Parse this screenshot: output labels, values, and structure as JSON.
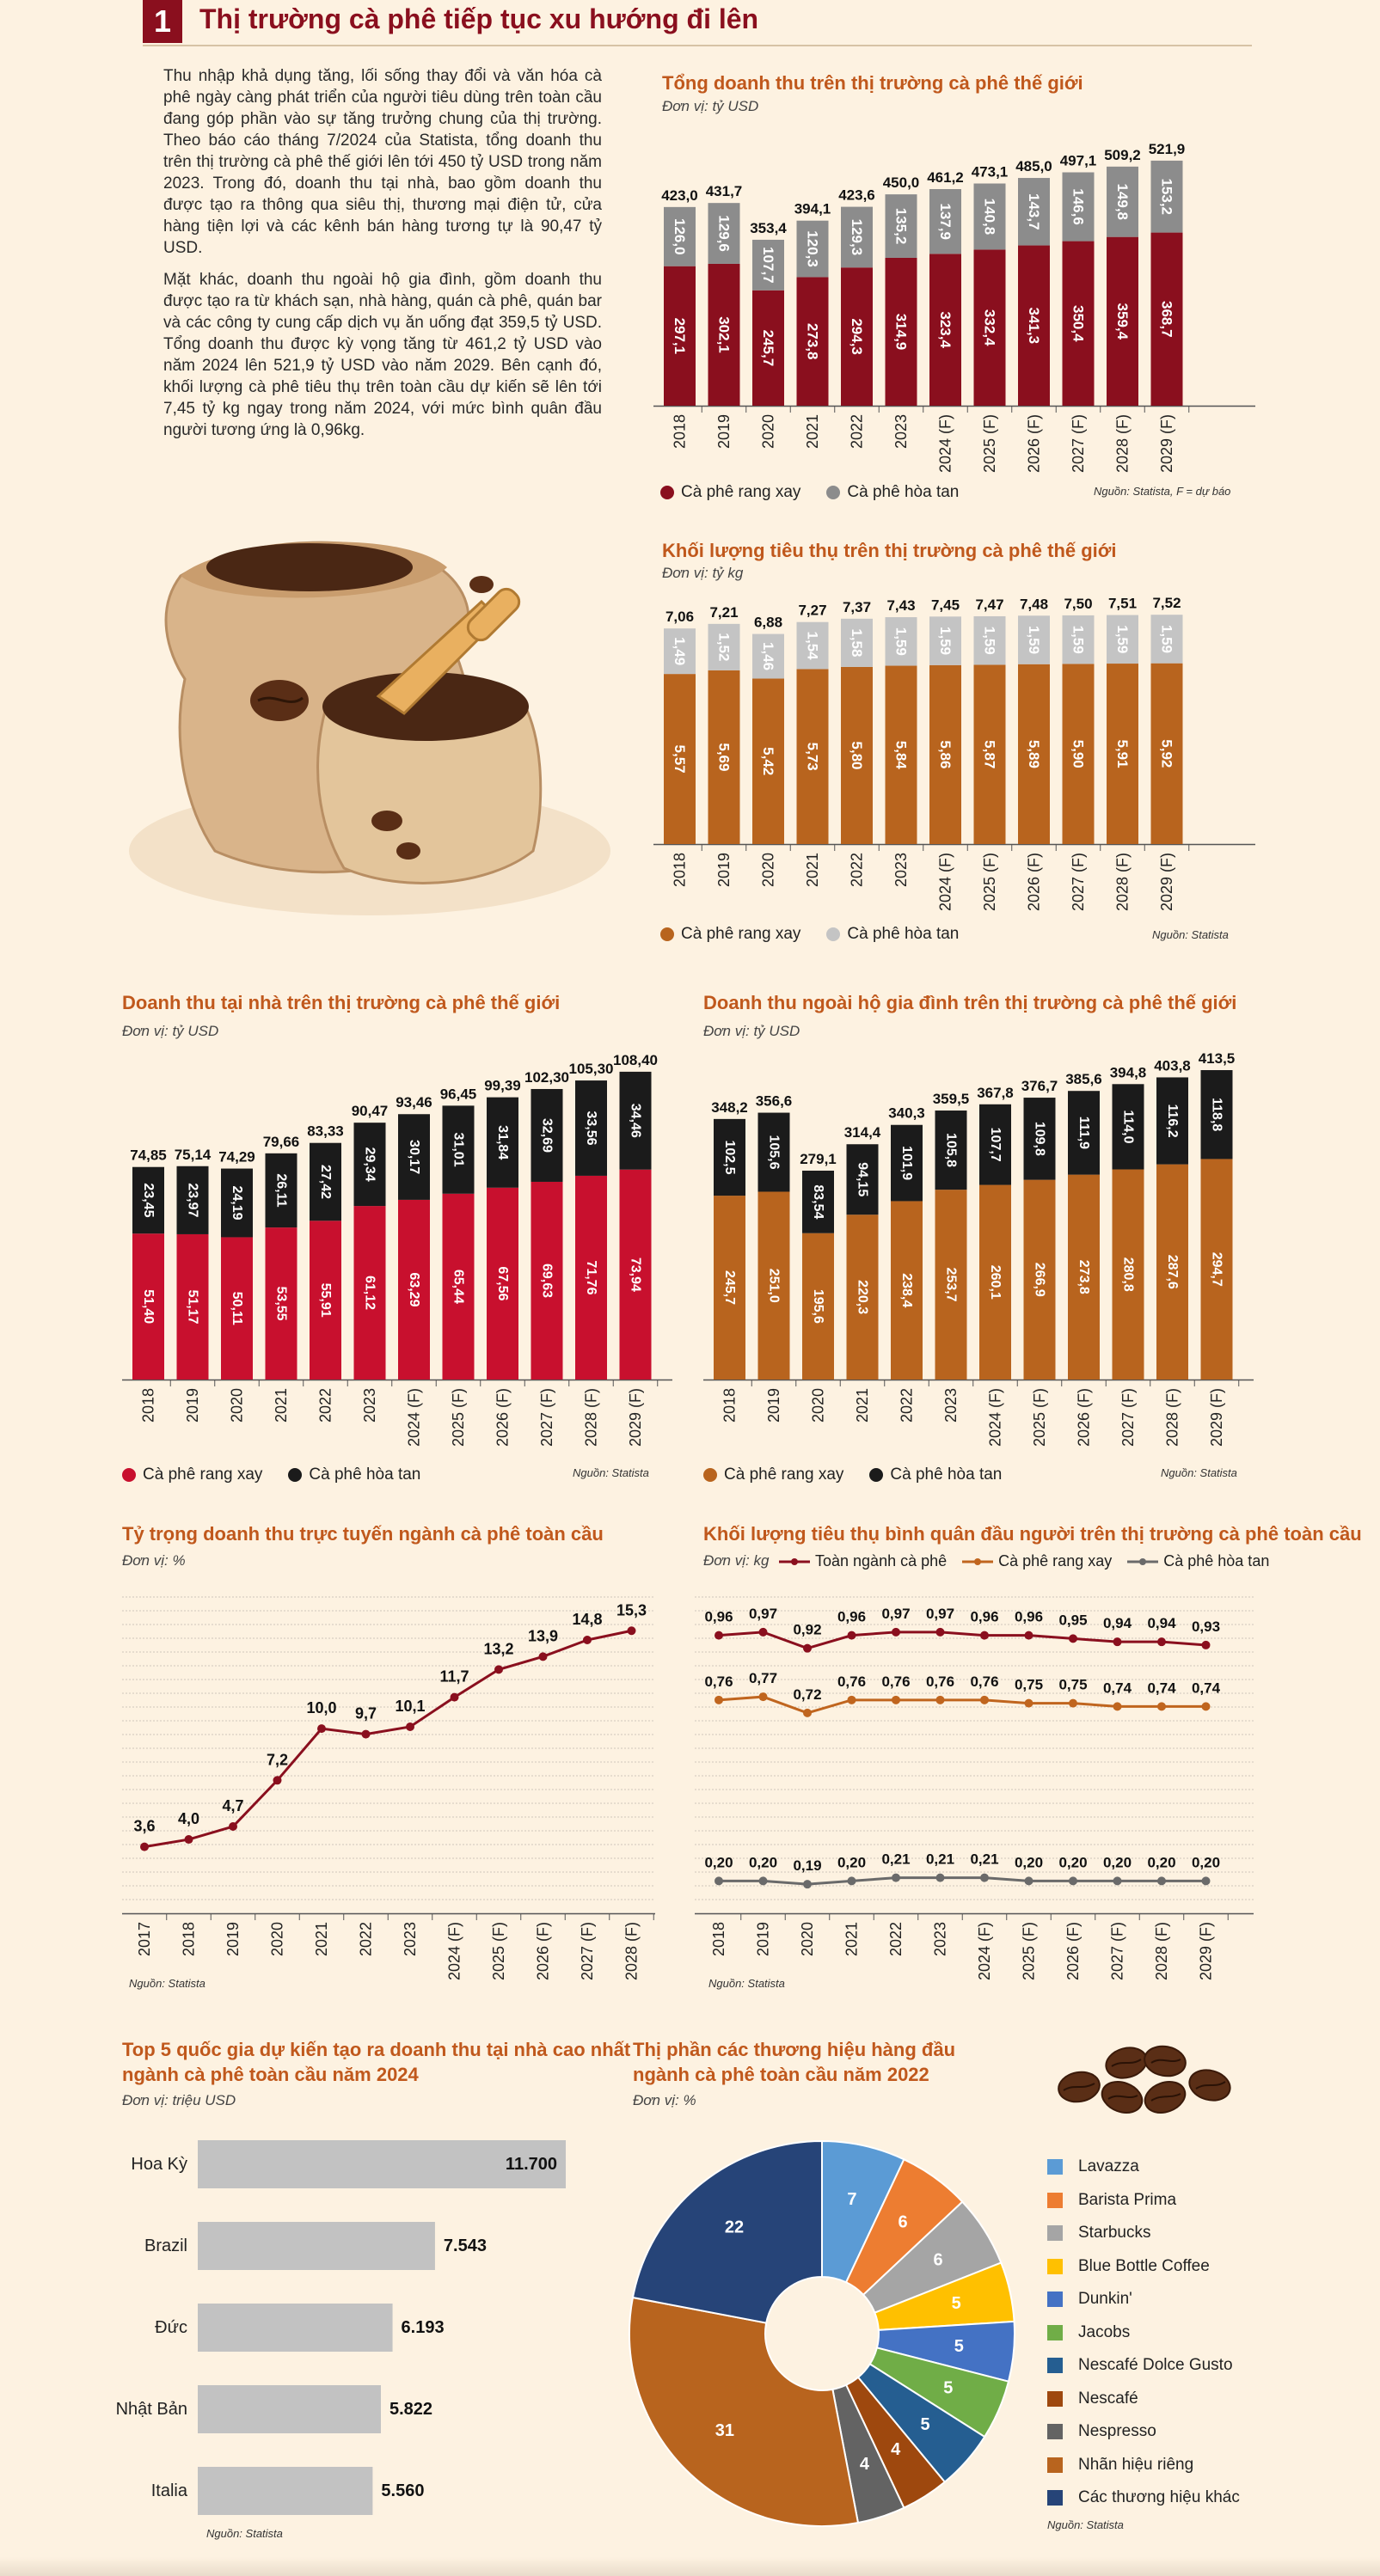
{
  "header": {
    "number": "1",
    "title": "Thị trường cà phê tiếp tục xu hướng đi lên"
  },
  "intro": {
    "p1": "Thu nhập khả dụng tăng, lối sống thay đổi và văn hóa cà phê ngày càng phát triển của người tiêu dùng trên toàn cầu đang góp phần vào sự tăng trưởng chung của thị trường. Theo báo cáo tháng 7/2024 của Statista, tổng doanh thu trên thị trường cà phê thế giới lên tới 450 tỷ USD trong năm 2023. Trong đó, doanh thu tại nhà, bao gồm doanh thu được tạo ra thông qua siêu thị, thương mại điện tử, cửa hàng tiện lợi và các kênh bán hàng tương tự là 90,47 tỷ USD.",
    "p2": "Mặt khác, doanh thu ngoài hộ gia đình, gồm doanh thu được tạo ra từ khách sạn, nhà hàng, quán cà phê, quán bar và các công ty cung cấp dịch vụ ăn uống đạt 359,5 tỷ USD. Tổng doanh thu được kỳ vọng tăng từ 461,2 tỷ USD vào năm 2024 lên 521,9 tỷ USD vào năm 2029. Bên cạnh đó, khối lượng cà phê tiêu thụ trên toàn cầu dự kiến sẽ lên tới 7,45 tỷ kg ngay trong năm 2024, với mức bình quân đầu người tương ứng là 0,96kg."
  },
  "chart_data": [
    {
      "id": "total-revenue",
      "type": "bar",
      "stacked": true,
      "title": "Tổng doanh thu trên thị trường cà phê thế giới",
      "subtitle": "Đơn vị: tỷ USD",
      "source": "Nguồn: Statista, F = dự báo",
      "categories": [
        "2018",
        "2019",
        "2020",
        "2021",
        "2022",
        "2023",
        "2024 (F)",
        "2025 (F)",
        "2026 (F)",
        "2027 (F)",
        "2028 (F)",
        "2029 (F)"
      ],
      "series": [
        {
          "name": "Cà phê rang xay",
          "color": "#8a0f1e",
          "values": [
            297.1,
            302.1,
            245.7,
            273.8,
            294.3,
            314.9,
            323.4,
            332.4,
            341.3,
            350.4,
            359.4,
            368.7
          ],
          "labels": [
            "297,1",
            "302,1",
            "245,7",
            "273,8",
            "294,3",
            "314,9",
            "323,4",
            "332,4",
            "341,3",
            "350,4",
            "359,4",
            "368,7"
          ]
        },
        {
          "name": "Cà phê hòa tan",
          "color": "#8c8c8c",
          "values": [
            126.0,
            129.6,
            107.7,
            120.3,
            129.3,
            135.2,
            137.9,
            140.8,
            143.7,
            146.6,
            149.8,
            153.2
          ],
          "labels": [
            "126,0",
            "129,6",
            "107,7",
            "120,3",
            "129,3",
            "135,2",
            "137,9",
            "140,8",
            "143,7",
            "146,6",
            "149,8",
            "153,2"
          ]
        }
      ],
      "totals": [
        "423,0",
        "431,7",
        "353,4",
        "394,1",
        "423,6",
        "450,0",
        "461,2",
        "473,1",
        "485,0",
        "497,1",
        "509,2",
        "521,9"
      ],
      "ylim": [
        0,
        540
      ]
    },
    {
      "id": "volume",
      "type": "bar",
      "stacked": true,
      "title": "Khối lượng tiêu thụ trên thị trường cà phê thế giới",
      "subtitle": "Đơn vị: tỷ kg",
      "source": "Nguồn: Statista",
      "categories": [
        "2018",
        "2019",
        "2020",
        "2021",
        "2022",
        "2023",
        "2024 (F)",
        "2025 (F)",
        "2026 (F)",
        "2027 (F)",
        "2028 (F)",
        "2029 (F)"
      ],
      "series": [
        {
          "name": "Cà phê rang xay",
          "color": "#b8641e",
          "values": [
            5.57,
            5.69,
            5.42,
            5.73,
            5.8,
            5.84,
            5.86,
            5.87,
            5.89,
            5.9,
            5.91,
            5.92
          ],
          "labels": [
            "5,57",
            "5,69",
            "5,42",
            "5,73",
            "5,80",
            "5,84",
            "5,86",
            "5,87",
            "5,89",
            "5,90",
            "5,91",
            "5,92"
          ]
        },
        {
          "name": "Cà phê hòa tan",
          "color": "#c4c4c4",
          "values": [
            1.49,
            1.52,
            1.46,
            1.54,
            1.58,
            1.59,
            1.59,
            1.59,
            1.59,
            1.59,
            1.59,
            1.59
          ],
          "labels": [
            "1,49",
            "1,52",
            "1,46",
            "1,54",
            "1,58",
            "1,59",
            "1,59",
            "1,59",
            "1,59",
            "1,59",
            "1,59",
            "1,59"
          ]
        }
      ],
      "totals": [
        "7,06",
        "7,21",
        "6,88",
        "7,27",
        "7,37",
        "7,43",
        "7,45",
        "7,47",
        "7,48",
        "7,50",
        "7,51",
        "7,52"
      ],
      "ylim": [
        0,
        7.6
      ]
    },
    {
      "id": "at-home",
      "type": "bar",
      "stacked": true,
      "title": "Doanh thu tại nhà trên thị trường cà phê thế giới",
      "subtitle": "Đơn vị: tỷ USD",
      "source": "Nguồn: Statista",
      "categories": [
        "2018",
        "2019",
        "2020",
        "2021",
        "2022",
        "2023",
        "2024 (F)",
        "2025 (F)",
        "2026 (F)",
        "2027 (F)",
        "2028 (F)",
        "2029 (F)"
      ],
      "series": [
        {
          "name": "Cà phê rang xay",
          "color": "#c8102e",
          "values": [
            51.4,
            51.17,
            50.11,
            53.55,
            55.91,
            61.12,
            63.29,
            65.44,
            67.56,
            69.63,
            71.76,
            73.94
          ],
          "labels": [
            "51,40",
            "51,17",
            "50,11",
            "53,55",
            "55,91",
            "61,12",
            "63,29",
            "65,44",
            "67,56",
            "69,63",
            "71,76",
            "73,94"
          ]
        },
        {
          "name": "Cà phê hòa tan",
          "color": "#1b1b1b",
          "values": [
            23.45,
            23.97,
            24.19,
            26.11,
            27.42,
            29.34,
            30.17,
            31.01,
            31.84,
            32.69,
            33.56,
            34.46
          ],
          "labels": [
            "23,45",
            "23,97",
            "24,19",
            "26,11",
            "27,42",
            "29,34",
            "30,17",
            "31,01",
            "31,84",
            "32,69",
            "33,56",
            "34,46"
          ]
        }
      ],
      "totals": [
        "74,85",
        "75,14",
        "74,29",
        "79,66",
        "83,33",
        "90,47",
        "93,46",
        "96,45",
        "99,39",
        "102,30",
        "105,30",
        "108,40"
      ],
      "ylim": [
        0,
        112
      ]
    },
    {
      "id": "out-of-home",
      "type": "bar",
      "stacked": true,
      "title": "Doanh thu ngoài hộ gia đình trên thị trường cà phê thế giới",
      "subtitle": "Đơn vị: tỷ USD",
      "source": "Nguồn: Statista",
      "categories": [
        "2018",
        "2019",
        "2020",
        "2021",
        "2022",
        "2023",
        "2024 (F)",
        "2025 (F)",
        "2026 (F)",
        "2027 (F)",
        "2028 (F)",
        "2029 (F)"
      ],
      "series": [
        {
          "name": "Cà phê rang xay",
          "color": "#b8641e",
          "values": [
            245.7,
            251.0,
            195.6,
            220.3,
            238.4,
            253.7,
            260.1,
            266.9,
            273.8,
            280.8,
            287.6,
            294.7
          ],
          "labels": [
            "245,7",
            "251,0",
            "195,6",
            "220,3",
            "238,4",
            "253,7",
            "260,1",
            "266,9",
            "273,8",
            "280,8",
            "287,6",
            "294,7"
          ]
        },
        {
          "name": "Cà phê hòa tan",
          "color": "#1b1b1b",
          "values": [
            102.5,
            105.6,
            83.54,
            94.15,
            101.9,
            105.8,
            107.7,
            109.8,
            111.9,
            114.0,
            116.2,
            118.8
          ],
          "labels": [
            "102,5",
            "105,6",
            "83,54",
            "94,15",
            "101,9",
            "105,8",
            "107,7",
            "109,8",
            "111,9",
            "114,0",
            "116,2",
            "118,8"
          ]
        }
      ],
      "totals": [
        "348,2",
        "356,6",
        "279,1",
        "314,4",
        "340,3",
        "359,5",
        "367,8",
        "376,7",
        "385,6",
        "394,8",
        "403,8",
        "413,5"
      ],
      "ylim": [
        0,
        425
      ]
    },
    {
      "id": "online-share",
      "type": "line",
      "title": "Tỷ trọng doanh thu trực tuyến ngành cà phê toàn cầu",
      "subtitle": "Đơn vị: %",
      "source": "Nguồn: Statista",
      "categories": [
        "2017",
        "2018",
        "2019",
        "2020",
        "2021",
        "2022",
        "2023",
        "2024 (F)",
        "2025 (F)",
        "2026 (F)",
        "2027 (F)",
        "2028 (F)"
      ],
      "series": [
        {
          "name": "",
          "color": "#8a0f1e",
          "values": [
            3.6,
            4.0,
            4.7,
            7.2,
            10.0,
            9.7,
            10.1,
            11.7,
            13.2,
            13.9,
            14.8,
            15.3
          ],
          "labels": [
            "3,6",
            "4,0",
            "4,7",
            "7,2",
            "10,0",
            "9,7",
            "10,1",
            "11,7",
            "13,2",
            "13,9",
            "14,8",
            "15,3"
          ]
        }
      ],
      "ylim": [
        0,
        17.5
      ],
      "grid": true
    },
    {
      "id": "per-capita",
      "type": "line",
      "title": "Khối lượng tiêu thụ bình quân đầu người trên thị trường cà phê toàn cầu",
      "subtitle": "Đơn vị: kg",
      "source": "Nguồn: Statista",
      "categories": [
        "2018",
        "2019",
        "2020",
        "2021",
        "2022",
        "2023",
        "2024 (F)",
        "2025 (F)",
        "2026 (F)",
        "2027 (F)",
        "2028 (F)",
        "2029 (F)"
      ],
      "series": [
        {
          "name": "Toàn ngành cà phê",
          "color": "#8a0f1e",
          "values": [
            0.96,
            0.97,
            0.92,
            0.96,
            0.97,
            0.97,
            0.96,
            0.96,
            0.95,
            0.94,
            0.94,
            0.93
          ],
          "labels": [
            "0,96",
            "0,97",
            "0,92",
            "0,96",
            "0,97",
            "0,97",
            "0,96",
            "0,96",
            "0,95",
            "0,94",
            "0,94",
            "0,93"
          ]
        },
        {
          "name": "Cà phê rang xay",
          "color": "#c0651e",
          "values": [
            0.76,
            0.77,
            0.72,
            0.76,
            0.76,
            0.76,
            0.76,
            0.75,
            0.75,
            0.74,
            0.74,
            0.74
          ],
          "labels": [
            "0,76",
            "0,77",
            "0,72",
            "0,76",
            "0,76",
            "0,76",
            "0,76",
            "0,75",
            "0,75",
            "0,74",
            "0,74",
            "0,74"
          ]
        },
        {
          "name": "Cà phê hòa tan",
          "color": "#6a6a6a",
          "values": [
            0.2,
            0.2,
            0.19,
            0.2,
            0.21,
            0.21,
            0.21,
            0.2,
            0.2,
            0.2,
            0.2,
            0.2
          ],
          "labels": [
            "0,20",
            "0,20",
            "0,19",
            "0,20",
            "0,21",
            "0,21",
            "0,21",
            "0,20",
            "0,20",
            "0,20",
            "0,20",
            "0,20"
          ]
        }
      ],
      "ylim": [
        0.1,
        1.1
      ],
      "grid": true
    },
    {
      "id": "top5",
      "type": "bar",
      "orientation": "horizontal",
      "title": "Top 5 quốc gia dự kiến tạo ra doanh thu tại nhà cao nhất ngành cà phê toàn cầu năm 2024",
      "title_line1": "Top 5 quốc gia dự kiến tạo ra doanh thu tại nhà cao nhất",
      "title_line2": "ngành cà phê toàn cầu năm 2024",
      "subtitle": "Đơn vị: triệu USD",
      "source": "Nguồn: Statista",
      "categories": [
        "Hoa Kỳ",
        "Brazil",
        "Đức",
        "Nhật Bản",
        "Italia"
      ],
      "values": [
        11700,
        7543,
        6193,
        5822,
        5560
      ],
      "labels": [
        "11.700",
        "7.543",
        "6.193",
        "5.822",
        "5.560"
      ],
      "color": "#c2c2c2",
      "xlim": [
        0,
        12000
      ]
    },
    {
      "id": "brand-share",
      "type": "pie",
      "title": "Thị phần các thương hiệu hàng đầu ngành cà phê toàn cầu năm 2022",
      "title_line1": "Thị phần các thương hiệu hàng đầu",
      "title_line2": "ngành cà phê toàn cầu năm 2022",
      "subtitle": "Đơn vị: %",
      "source": "Nguồn: Statista",
      "slices": [
        {
          "name": "Lavazza",
          "value": 7,
          "color": "#5b9bd5"
        },
        {
          "name": "Barista Prima",
          "value": 6,
          "color": "#ed7d31"
        },
        {
          "name": "Starbucks",
          "value": 6,
          "color": "#a5a5a5"
        },
        {
          "name": "Blue Bottle Coffee",
          "value": 5,
          "color": "#ffc000"
        },
        {
          "name": "Dunkin'",
          "value": 5,
          "color": "#4472c4"
        },
        {
          "name": "Jacobs",
          "value": 5,
          "color": "#70ad47"
        },
        {
          "name": "Nescafé Dolce Gusto",
          "value": 5,
          "color": "#255e91"
        },
        {
          "name": "Nescafé",
          "value": 4,
          "color": "#9e480e"
        },
        {
          "name": "Nespresso",
          "value": 4,
          "color": "#636363"
        },
        {
          "name": "Nhãn hiệu riêng",
          "value": 31,
          "color": "#b8641e"
        },
        {
          "name": "Các thương hiệu khác",
          "value": 22,
          "color": "#264478"
        }
      ]
    }
  ]
}
